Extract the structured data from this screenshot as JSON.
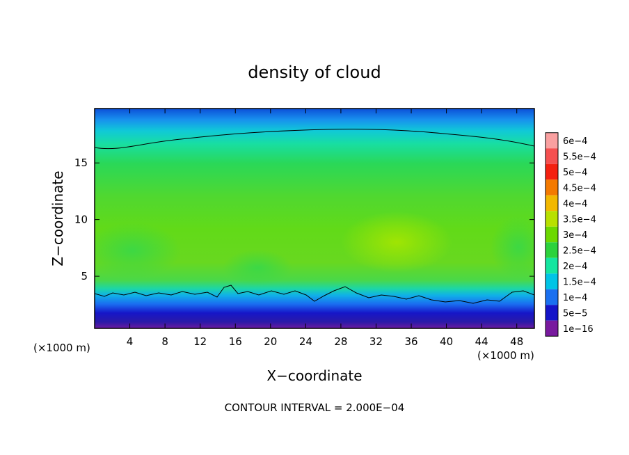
{
  "chart_data": {
    "type": "heatmap",
    "title": "density of cloud",
    "xlabel": "X−coordinate",
    "ylabel": "Z−coordinate",
    "x_unit_left": "(×1000 m)",
    "x_unit_right": "(×1000 m)",
    "xlim": [
      0,
      50
    ],
    "ylim": [
      0.4,
      19.8
    ],
    "x_ticks": [
      4,
      8,
      12,
      16,
      20,
      24,
      28,
      32,
      36,
      40,
      44,
      48
    ],
    "y_ticks": [
      5,
      10,
      15
    ],
    "colorbar": {
      "labels": [
        "6e−4",
        "5.5e−4",
        "5e−4",
        "4.5e−4",
        "4e−4",
        "3.5e−4",
        "3e−4",
        "2.5e−4",
        "2e−4",
        "1.5e−4",
        "1e−4",
        "5e−5",
        "1e−16"
      ],
      "colors": [
        "#f9a0a0",
        "#f55050",
        "#f42010",
        "#f47a00",
        "#f2b800",
        "#b8e000",
        "#6cd800",
        "#2cd23c",
        "#14e6a0",
        "#00c4e6",
        "#1a70f0",
        "#1414c8",
        "#781a9e"
      ]
    },
    "contour_level_label": "2e−4",
    "footer": "CONTOUR INTERVAL = 2.000E−04"
  }
}
